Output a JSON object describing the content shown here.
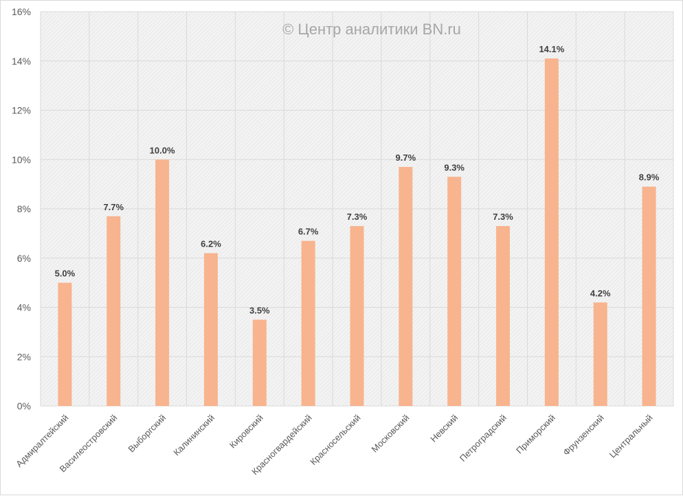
{
  "chart_data": {
    "type": "bar",
    "title": "",
    "watermark": "© Центр аналитики BN.ru",
    "xlabel": "",
    "ylabel": "",
    "categories": [
      "Адмиралтейский",
      "Василеостровский",
      "Выборгский",
      "Калининский",
      "Кировский",
      "Красногвардейский",
      "Красносельский",
      "Московский",
      "Невский",
      "Петроградский",
      "Приморский",
      "Фрунзенский",
      "Центральный"
    ],
    "values": [
      5.0,
      7.7,
      10.0,
      6.2,
      3.5,
      6.7,
      7.3,
      9.7,
      9.3,
      7.3,
      14.1,
      4.2,
      8.9
    ],
    "data_labels": [
      "5.0%",
      "7.7%",
      "10.0%",
      "6.2%",
      "3.5%",
      "6.7%",
      "7.3%",
      "9.7%",
      "9.3%",
      "7.3%",
      "14.1%",
      "4.2%",
      "8.9%"
    ],
    "ylim": [
      0,
      16
    ],
    "yticks": [
      0,
      2,
      4,
      6,
      8,
      10,
      12,
      14,
      16
    ],
    "ytick_labels": [
      "0%",
      "2%",
      "4%",
      "6%",
      "8%",
      "10%",
      "12%",
      "14%",
      "16%"
    ],
    "grid": true,
    "legend": "none",
    "colors": {
      "bar": "#F8B48E",
      "grid": "#d9d9d9",
      "plot_bg": "#f0f0f0",
      "text": "#595959",
      "label": "#404040",
      "watermark": "#a6a6a6"
    }
  }
}
